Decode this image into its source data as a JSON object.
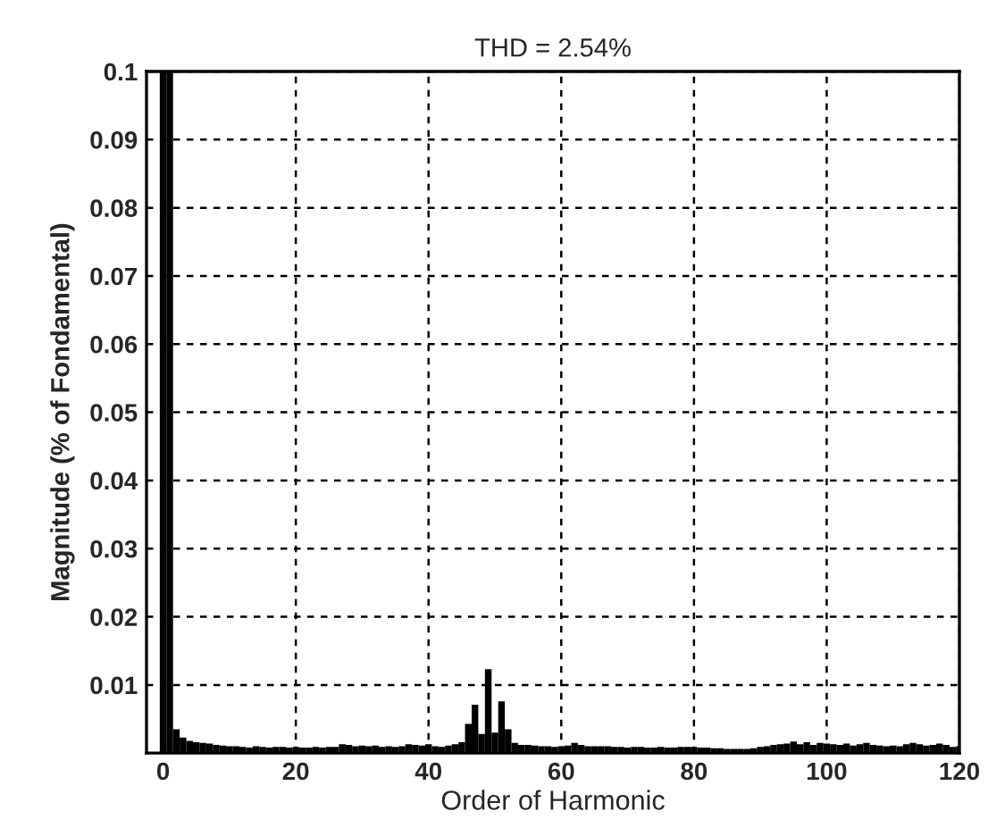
{
  "chart_data": {
    "type": "bar",
    "title": "THD = 2.54%",
    "xlabel": "Order of Harmonic",
    "ylabel": "Magnitude (% of Fondamental)",
    "x": [
      0,
      1,
      2,
      3,
      4,
      5,
      6,
      7,
      8,
      9,
      10,
      11,
      12,
      13,
      14,
      15,
      16,
      17,
      18,
      19,
      20,
      21,
      22,
      23,
      24,
      25,
      26,
      27,
      28,
      29,
      30,
      31,
      32,
      33,
      34,
      35,
      36,
      37,
      38,
      39,
      40,
      41,
      42,
      43,
      44,
      45,
      46,
      47,
      48,
      49,
      50,
      51,
      52,
      53,
      54,
      55,
      56,
      57,
      58,
      59,
      60,
      61,
      62,
      63,
      64,
      65,
      66,
      67,
      68,
      69,
      70,
      71,
      72,
      73,
      74,
      75,
      76,
      77,
      78,
      79,
      80,
      81,
      82,
      83,
      84,
      85,
      86,
      87,
      88,
      89,
      90,
      91,
      92,
      93,
      94,
      95,
      96,
      97,
      98,
      99,
      100,
      101,
      102,
      103,
      104,
      105,
      106,
      107,
      108,
      109,
      110,
      111,
      112,
      113,
      114,
      115,
      116,
      117,
      118,
      119,
      120
    ],
    "values": [
      0.1,
      0.1,
      0.0035,
      0.0023,
      0.0018,
      0.0016,
      0.0015,
      0.0014,
      0.0012,
      0.0011,
      0.001,
      0.001,
      0.0009,
      0.0008,
      0.001,
      0.0009,
      0.0008,
      0.0009,
      0.0009,
      0.0008,
      0.0009,
      0.0008,
      0.0008,
      0.0009,
      0.0008,
      0.0009,
      0.0009,
      0.0013,
      0.0012,
      0.001,
      0.0011,
      0.001,
      0.0011,
      0.0009,
      0.001,
      0.0009,
      0.001,
      0.0013,
      0.0012,
      0.0011,
      0.0013,
      0.001,
      0.0009,
      0.0011,
      0.0013,
      0.0016,
      0.0043,
      0.0071,
      0.0028,
      0.0123,
      0.003,
      0.0076,
      0.0035,
      0.0015,
      0.0012,
      0.0012,
      0.0011,
      0.001,
      0.001,
      0.0009,
      0.001,
      0.0011,
      0.0015,
      0.0012,
      0.001,
      0.001,
      0.001,
      0.001,
      0.0009,
      0.0009,
      0.0008,
      0.0009,
      0.0009,
      0.0008,
      0.0008,
      0.0009,
      0.0008,
      0.0008,
      0.0009,
      0.0009,
      0.0009,
      0.0008,
      0.0008,
      0.0007,
      0.0007,
      0.0006,
      0.0006,
      0.0006,
      0.0006,
      0.0007,
      0.0009,
      0.001,
      0.0012,
      0.0013,
      0.0014,
      0.0017,
      0.0013,
      0.0016,
      0.0012,
      0.0015,
      0.0014,
      0.0013,
      0.0012,
      0.0014,
      0.0011,
      0.0013,
      0.0015,
      0.0012,
      0.0011,
      0.001,
      0.0011,
      0.001,
      0.0013,
      0.0015,
      0.0013,
      0.0011,
      0.0012,
      0.0014,
      0.0012,
      0.0009,
      0.001
    ],
    "color": "#000000",
    "xlim": [
      -2.5,
      120
    ],
    "xticks": [
      0,
      20,
      40,
      60,
      80,
      100,
      120
    ],
    "ylim": [
      0,
      0.1
    ],
    "yticks": [
      0.01,
      0.02,
      0.03,
      0.04,
      0.05,
      0.06,
      0.07,
      0.08,
      0.09,
      0.1
    ],
    "grid": true,
    "line_style": "dashed"
  }
}
